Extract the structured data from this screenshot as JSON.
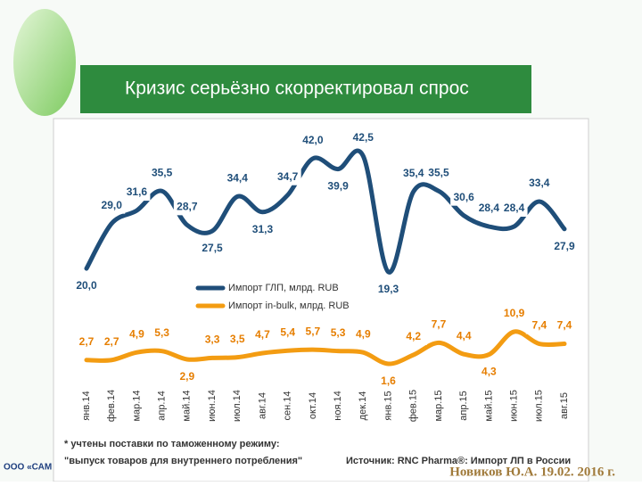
{
  "title": "Кризис серьёзно скорректировал спрос",
  "chart_data": {
    "type": "line",
    "categories": [
      "янв.14",
      "фев.14",
      "мар.14",
      "апр.14",
      "май.14",
      "июн.14",
      "июл.14",
      "авг.14",
      "сен.14",
      "окт.14",
      "ноя.14",
      "дек.14",
      "янв.15",
      "фев.15",
      "мар.15",
      "апр.15",
      "май.15",
      "июн.15",
      "июл.15",
      "авг.15"
    ],
    "series": [
      {
        "name": "Импорт ГЛП, млрд. RUB",
        "color": "#1f4e79",
        "values": [
          20.0,
          29.0,
          31.6,
          35.5,
          28.7,
          27.5,
          34.4,
          31.3,
          34.7,
          42.0,
          39.9,
          42.5,
          19.3,
          35.4,
          35.5,
          30.6,
          28.4,
          28.4,
          33.4,
          27.9
        ],
        "value_labels": [
          "20,0",
          "29,0",
          "31,6",
          "35,5",
          "28,7",
          "27,5",
          "34,4",
          "31,3",
          "34,7",
          "42,0",
          "39,9",
          "42,5",
          "19,3",
          "35,4",
          "35,5",
          "30,6",
          "28,4",
          "28,4",
          "33,4",
          "27,9"
        ]
      },
      {
        "name": "Импорт in-bulk, млрд. RUB",
        "color": "#f39c12",
        "values": [
          2.7,
          2.7,
          4.9,
          5.3,
          2.9,
          3.3,
          3.5,
          4.7,
          5.4,
          5.7,
          5.3,
          4.9,
          1.6,
          4.2,
          7.7,
          4.4,
          4.3,
          10.9,
          7.4,
          7.4
        ],
        "value_labels": [
          "2,7",
          "2,7",
          "4,9",
          "5,3",
          "2,9",
          "3,3",
          "3,5",
          "4,7",
          "5,4",
          "5,7",
          "5,3",
          "4,9",
          "1,6",
          "4,2",
          "7,7",
          "4,4",
          "4,3",
          "10,9",
          "7,4",
          "7,4"
        ]
      }
    ]
  },
  "footnote": [
    "* учтены поставки по таможенному режиму:",
    "\"выпуск товаров для внутреннего потребления\""
  ],
  "source": "Источник: RNC Pharma®: Импорт ЛП в России",
  "author": "Новиков Ю.А. 19.02. 2016 г.",
  "company": "ООО «САМ"
}
